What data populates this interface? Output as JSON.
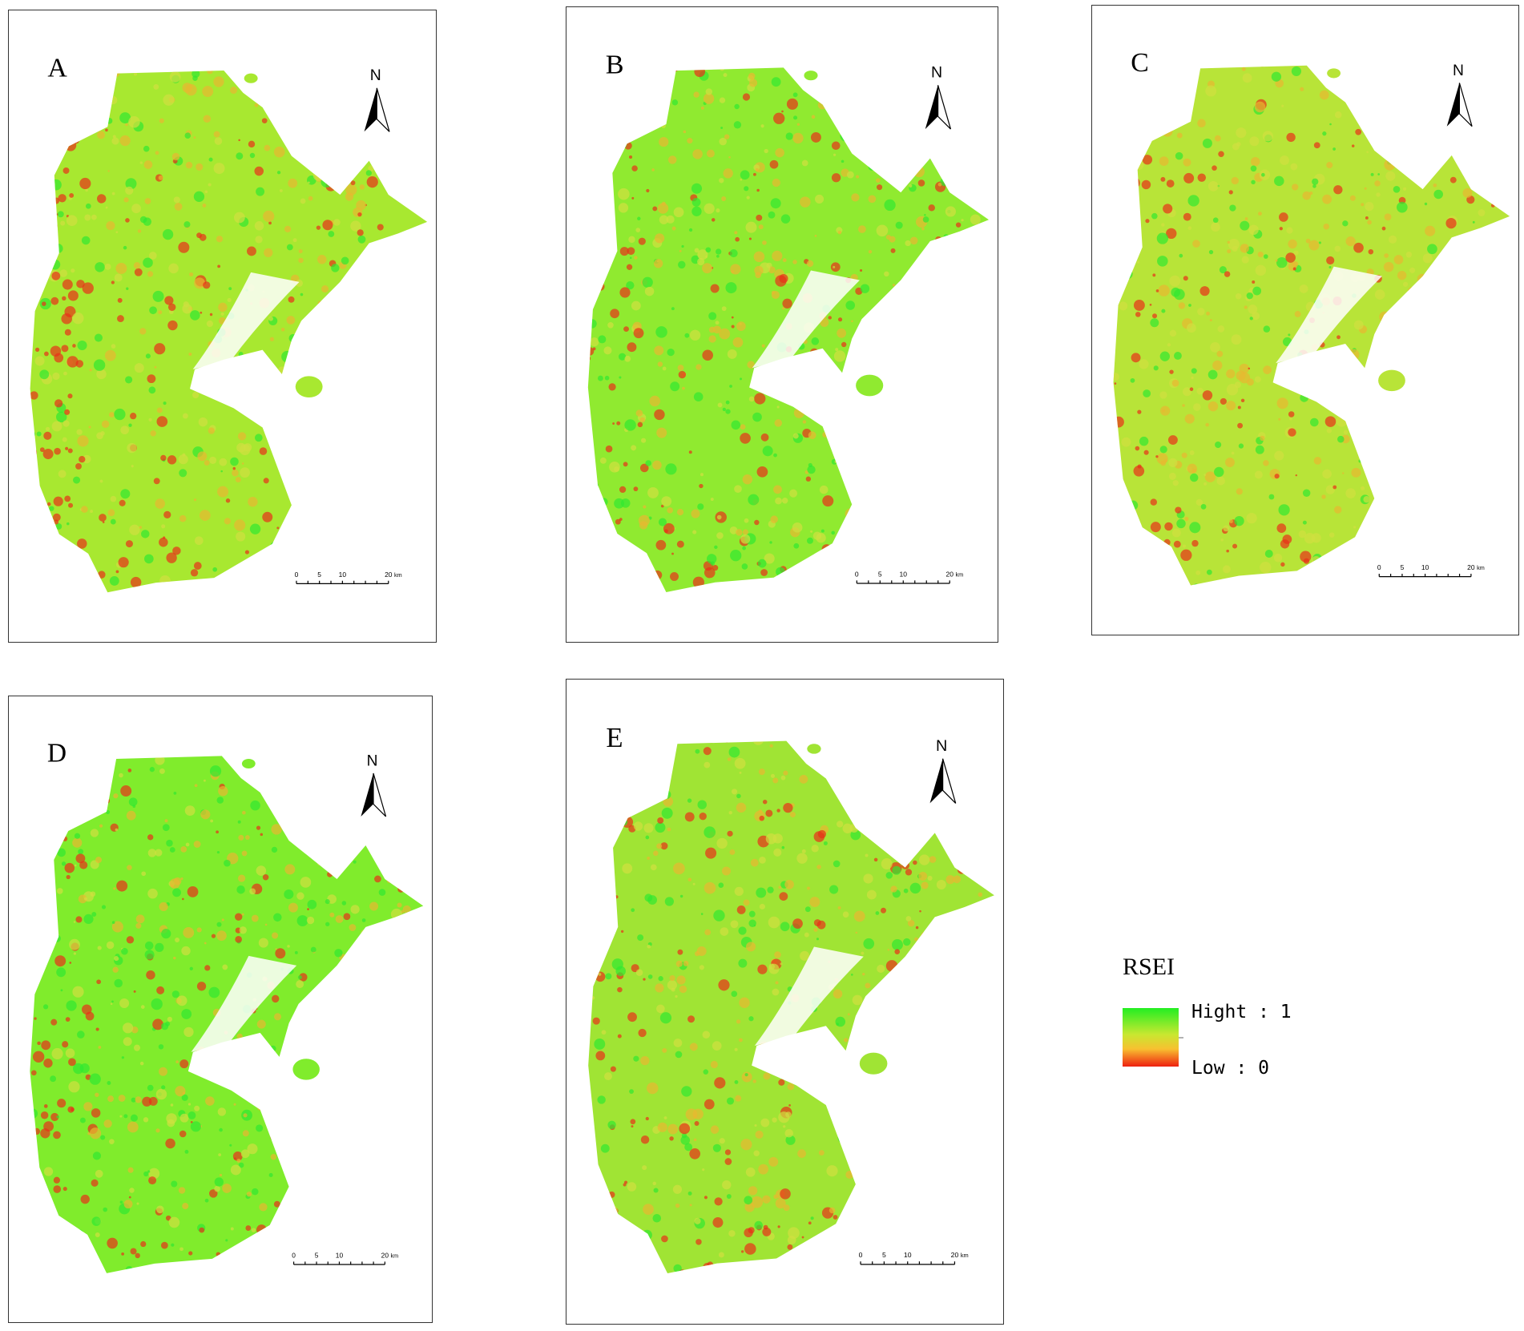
{
  "panels": [
    {
      "label": "A",
      "north": "N",
      "scale": [
        0,
        5,
        10,
        20
      ],
      "unit": "km"
    },
    {
      "label": "B",
      "north": "N",
      "scale": [
        0,
        5,
        10,
        20
      ],
      "unit": "km"
    },
    {
      "label": "C",
      "north": "N",
      "scale": [
        0,
        5,
        10,
        20
      ],
      "unit": "km"
    },
    {
      "label": "D",
      "north": "N",
      "scale": [
        0,
        5,
        10,
        20
      ],
      "unit": "km"
    },
    {
      "label": "E",
      "north": "N",
      "scale": [
        0,
        5,
        10,
        20
      ],
      "unit": "km"
    }
  ],
  "legend": {
    "title": "RSEI",
    "high": "Hight : 1",
    "low": "Low : 0"
  }
}
